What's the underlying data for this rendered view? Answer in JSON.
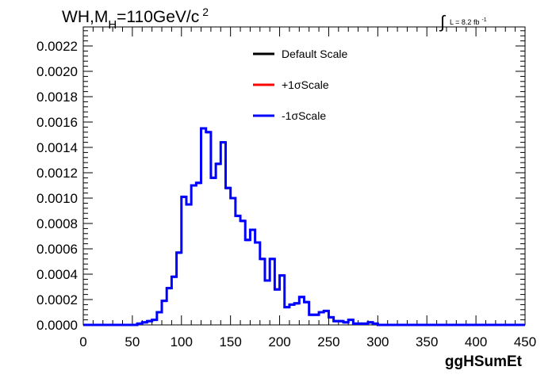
{
  "chart_data": {
    "type": "histogram",
    "title_main": "WH,M",
    "title_sub": "H",
    "title_rest": "=110GeV/c",
    "title_sup": "2",
    "lumi_integral": "∫",
    "lumi_text": "L = 8.2 fb",
    "lumi_sup": "-1",
    "xlabel": "ggHSumEt",
    "ylabel": "",
    "xlim": [
      0,
      450
    ],
    "ylim": [
      0,
      0.00235
    ],
    "x_ticks": [
      "0",
      "50",
      "100",
      "150",
      "200",
      "250",
      "300",
      "350",
      "400",
      "450"
    ],
    "y_ticks": [
      "0.0000",
      "0.0002",
      "0.0004",
      "0.0006",
      "0.0008",
      "0.0010",
      "0.0012",
      "0.0014",
      "0.0016",
      "0.0018",
      "0.0020",
      "0.0022"
    ],
    "bin_edges": [
      0,
      5,
      10,
      15,
      20,
      25,
      30,
      35,
      40,
      45,
      50,
      55,
      60,
      65,
      70,
      75,
      80,
      85,
      90,
      95,
      100,
      105,
      110,
      115,
      120,
      125,
      130,
      135,
      140,
      145,
      150,
      155,
      160,
      165,
      170,
      175,
      180,
      185,
      190,
      195,
      200,
      205,
      210,
      215,
      220,
      225,
      230,
      235,
      240,
      245,
      250,
      255,
      260,
      265,
      270,
      275,
      280,
      285,
      290,
      295,
      300,
      305,
      310,
      315,
      320,
      325,
      330,
      335,
      340,
      345,
      350,
      355,
      360,
      365,
      370,
      375,
      380,
      385,
      390,
      395,
      400,
      405,
      410,
      415,
      420,
      425,
      430,
      435,
      440,
      445,
      450
    ],
    "legend": [
      {
        "label": "Default Scale",
        "color": "#000000"
      },
      {
        "label": "+1σScale",
        "color": "#ff0000"
      },
      {
        "label": "-1σScale",
        "color": "#0000ff"
      }
    ],
    "series": [
      {
        "name": "-1σScale",
        "color": "#0000ff",
        "values": [
          0,
          0,
          0,
          0,
          0,
          0,
          0,
          0,
          0,
          0,
          0,
          1e-05,
          2e-05,
          3e-05,
          4e-05,
          0.0001,
          0.00019,
          0.00029,
          0.00038,
          0.00057,
          0.00101,
          0.00095,
          0.0011,
          0.00112,
          0.00155,
          0.00152,
          0.00116,
          0.00127,
          0.00144,
          0.00108,
          0.001,
          0.00086,
          0.00082,
          0.00067,
          0.00075,
          0.00065,
          0.00052,
          0.00035,
          0.00052,
          0.00028,
          0.00039,
          0.00014,
          0.00016,
          0.00017,
          0.00022,
          0.00018,
          8e-05,
          8e-05,
          0.0001,
          0.00011,
          6e-05,
          3e-05,
          3e-05,
          2e-05,
          4e-05,
          1e-05,
          1e-05,
          1e-05,
          2e-05,
          1e-05,
          0,
          0,
          0,
          0,
          0,
          0,
          0,
          0,
          0,
          0,
          0,
          0,
          0,
          0,
          0,
          0,
          0,
          0,
          0,
          0,
          0,
          0,
          0,
          0,
          0,
          0,
          0,
          0,
          0,
          0
        ],
        "bin_width": 5,
        "start": 0
      }
    ]
  }
}
